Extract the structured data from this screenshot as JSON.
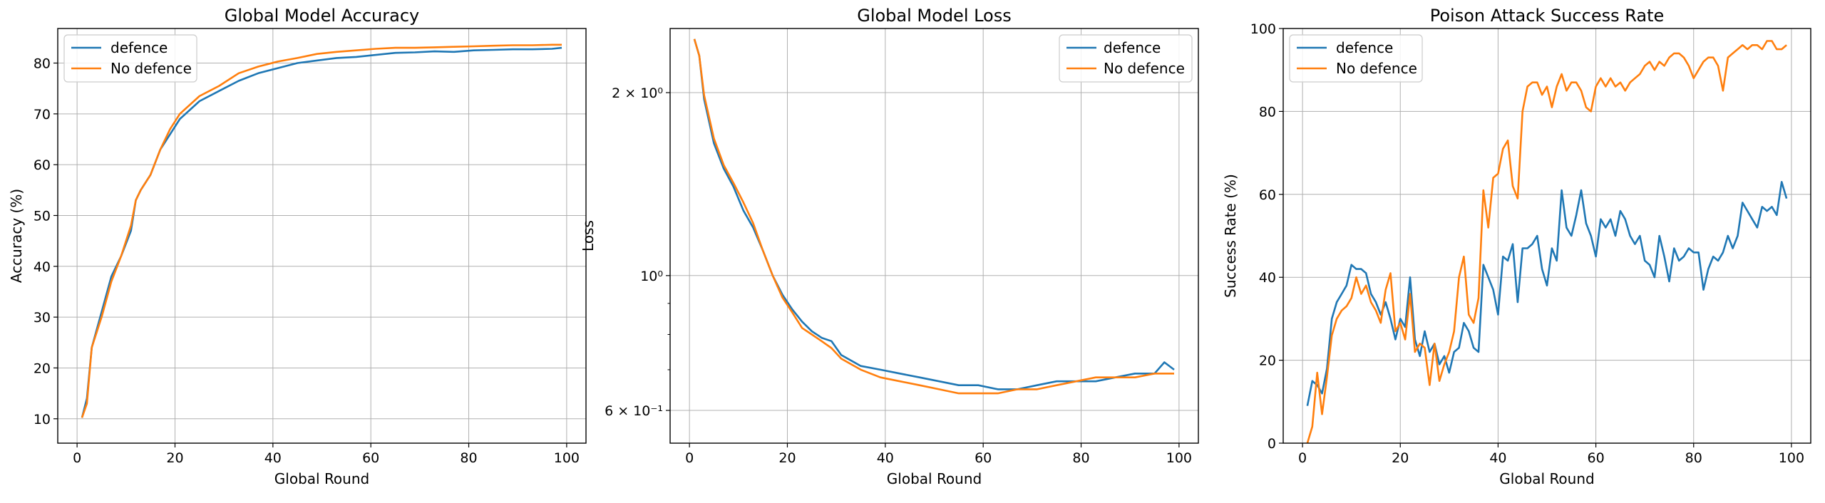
{
  "figure": {
    "background": "#ffffff"
  },
  "chart_data": [
    {
      "type": "line",
      "title": "Global Model Accuracy",
      "xlabel": "Global Round",
      "ylabel": "Accuracy (%)",
      "xlim": [
        -3.95,
        103.95
      ],
      "ylim": [
        5.2,
        86.8
      ],
      "yscale": "linear",
      "xticks": [
        0,
        20,
        40,
        60,
        80,
        100
      ],
      "xtick_labels": [
        "0",
        "20",
        "40",
        "60",
        "80",
        "100"
      ],
      "yticks": [
        10,
        20,
        30,
        40,
        50,
        60,
        70,
        80
      ],
      "ytick_labels": [
        "10",
        "20",
        "30",
        "40",
        "50",
        "60",
        "70",
        "80"
      ],
      "grid": true,
      "legend": "upper left",
      "x": [
        1,
        2,
        3,
        5,
        7,
        9,
        11,
        12,
        13,
        15,
        17,
        19,
        21,
        25,
        29,
        33,
        37,
        41,
        45,
        49,
        53,
        57,
        61,
        65,
        69,
        73,
        77,
        81,
        85,
        89,
        93,
        97,
        99
      ],
      "series": [
        {
          "name": "defence",
          "color": "#1f77b4",
          "values": [
            10.2,
            14,
            24,
            31,
            38,
            42,
            47,
            53,
            55,
            58,
            63,
            66,
            69,
            72.5,
            74.5,
            76.5,
            78,
            79,
            80,
            80.5,
            81,
            81.2,
            81.6,
            82,
            82.1,
            82.3,
            82.2,
            82.5,
            82.6,
            82.7,
            82.7,
            82.8,
            83
          ]
        },
        {
          "name": "No defence",
          "color": "#ff7f0e",
          "values": [
            10.2,
            13,
            24,
            30,
            37,
            42,
            48,
            53,
            55,
            58,
            63,
            67,
            70,
            73.5,
            75.5,
            78,
            79.3,
            80.3,
            81,
            81.8,
            82.2,
            82.5,
            82.8,
            83,
            83,
            83.1,
            83.2,
            83.3,
            83.4,
            83.5,
            83.5,
            83.6,
            83.6
          ]
        }
      ]
    },
    {
      "type": "line",
      "title": "Global Model Loss",
      "xlabel": "Global Round",
      "ylabel": "Loss",
      "xlim": [
        -3.95,
        103.95
      ],
      "ylim": [
        0.53,
        2.55
      ],
      "yscale": "log",
      "xticks": [
        0,
        20,
        40,
        60,
        80,
        100
      ],
      "xtick_labels": [
        "0",
        "20",
        "40",
        "60",
        "80",
        "100"
      ],
      "yticks": [
        0.6,
        1.0,
        2.0
      ],
      "ytick_labels": [
        "6 × 10⁻¹",
        "10⁰",
        "2 × 10⁰"
      ],
      "yminor_ticks": [
        0.7,
        0.8,
        0.9
      ],
      "grid": true,
      "legend": "upper right",
      "x": [
        1,
        2,
        3,
        5,
        7,
        9,
        11,
        13,
        15,
        17,
        19,
        21,
        23,
        25,
        27,
        29,
        31,
        35,
        39,
        43,
        47,
        51,
        55,
        59,
        63,
        67,
        71,
        75,
        79,
        83,
        87,
        91,
        95,
        97,
        99
      ],
      "series": [
        {
          "name": "defence",
          "color": "#1f77b4",
          "values": [
            2.45,
            2.3,
            1.95,
            1.65,
            1.5,
            1.4,
            1.28,
            1.2,
            1.1,
            1.0,
            0.93,
            0.88,
            0.84,
            0.81,
            0.79,
            0.78,
            0.74,
            0.71,
            0.7,
            0.69,
            0.68,
            0.67,
            0.66,
            0.66,
            0.65,
            0.65,
            0.66,
            0.67,
            0.67,
            0.67,
            0.68,
            0.69,
            0.69,
            0.72,
            0.7
          ]
        },
        {
          "name": "No defence",
          "color": "#ff7f0e",
          "values": [
            2.45,
            2.3,
            1.98,
            1.68,
            1.52,
            1.42,
            1.32,
            1.22,
            1.1,
            1.0,
            0.92,
            0.87,
            0.82,
            0.8,
            0.78,
            0.76,
            0.73,
            0.7,
            0.68,
            0.67,
            0.66,
            0.65,
            0.64,
            0.64,
            0.64,
            0.65,
            0.65,
            0.66,
            0.67,
            0.68,
            0.68,
            0.68,
            0.69,
            0.69,
            0.69
          ]
        }
      ]
    },
    {
      "type": "line",
      "title": "Poison Attack Success Rate",
      "xlabel": "Global Round",
      "ylabel": "Success Rate (%)",
      "xlim": [
        -3.95,
        103.95
      ],
      "ylim": [
        0,
        100
      ],
      "yscale": "linear",
      "xticks": [
        0,
        20,
        40,
        60,
        80,
        100
      ],
      "xtick_labels": [
        "0",
        "20",
        "40",
        "60",
        "80",
        "100"
      ],
      "yticks": [
        0,
        20,
        40,
        60,
        80,
        100
      ],
      "ytick_labels": [
        "0",
        "20",
        "40",
        "60",
        "80",
        "100"
      ],
      "grid": true,
      "legend": "upper left",
      "x": [
        1,
        2,
        3,
        4,
        5,
        6,
        7,
        8,
        9,
        10,
        11,
        12,
        13,
        14,
        15,
        16,
        17,
        18,
        19,
        20,
        21,
        22,
        23,
        24,
        25,
        26,
        27,
        28,
        29,
        30,
        31,
        32,
        33,
        34,
        35,
        36,
        37,
        38,
        39,
        40,
        41,
        42,
        43,
        44,
        45,
        46,
        47,
        48,
        49,
        50,
        51,
        52,
        53,
        54,
        55,
        56,
        57,
        58,
        59,
        60,
        61,
        62,
        63,
        64,
        65,
        66,
        67,
        68,
        69,
        70,
        71,
        72,
        73,
        74,
        75,
        76,
        77,
        78,
        79,
        80,
        81,
        82,
        83,
        84,
        85,
        86,
        87,
        88,
        89,
        90,
        91,
        92,
        93,
        94,
        95,
        96,
        97,
        98,
        99
      ],
      "series": [
        {
          "name": "defence",
          "color": "#1f77b4",
          "values": [
            9,
            15,
            14,
            12,
            18,
            30,
            34,
            36,
            38,
            43,
            42,
            42,
            41,
            36,
            34,
            31,
            34,
            30,
            25,
            30,
            28,
            40,
            25,
            21,
            27,
            22,
            24,
            19,
            21,
            17,
            22,
            23,
            29,
            27,
            23,
            22,
            43,
            40,
            37,
            31,
            45,
            44,
            48,
            34,
            47,
            47,
            48,
            50,
            42,
            38,
            47,
            44,
            61,
            52,
            50,
            55,
            61,
            53,
            50,
            45,
            54,
            52,
            54,
            50,
            56,
            54,
            50,
            48,
            50,
            44,
            43,
            40,
            50,
            45,
            39,
            47,
            44,
            45,
            47,
            46,
            46,
            37,
            42,
            45,
            44,
            46,
            50,
            47,
            50,
            58,
            56,
            54,
            52,
            57,
            56,
            57,
            55,
            63,
            59
          ]
        },
        {
          "name": "No defence",
          "color": "#ff7f0e",
          "values": [
            0,
            4,
            17,
            7,
            16,
            26,
            30,
            32,
            33,
            35,
            40,
            36,
            38,
            34,
            32,
            29,
            37,
            41,
            27,
            29,
            25,
            36,
            22,
            24,
            23,
            14,
            24,
            15,
            19,
            22,
            27,
            40,
            45,
            31,
            29,
            35,
            61,
            52,
            64,
            65,
            71,
            73,
            62,
            59,
            80,
            86,
            87,
            87,
            84,
            86,
            81,
            86,
            89,
            85,
            87,
            87,
            85,
            81,
            80,
            86,
            88,
            86,
            88,
            86,
            87,
            85,
            87,
            88,
            89,
            91,
            92,
            90,
            92,
            91,
            93,
            94,
            94,
            93,
            91,
            88,
            90,
            92,
            93,
            93,
            91,
            85,
            93,
            94,
            95,
            96,
            95,
            96,
            96,
            95,
            97,
            97,
            95,
            95,
            96
          ]
        }
      ]
    }
  ]
}
